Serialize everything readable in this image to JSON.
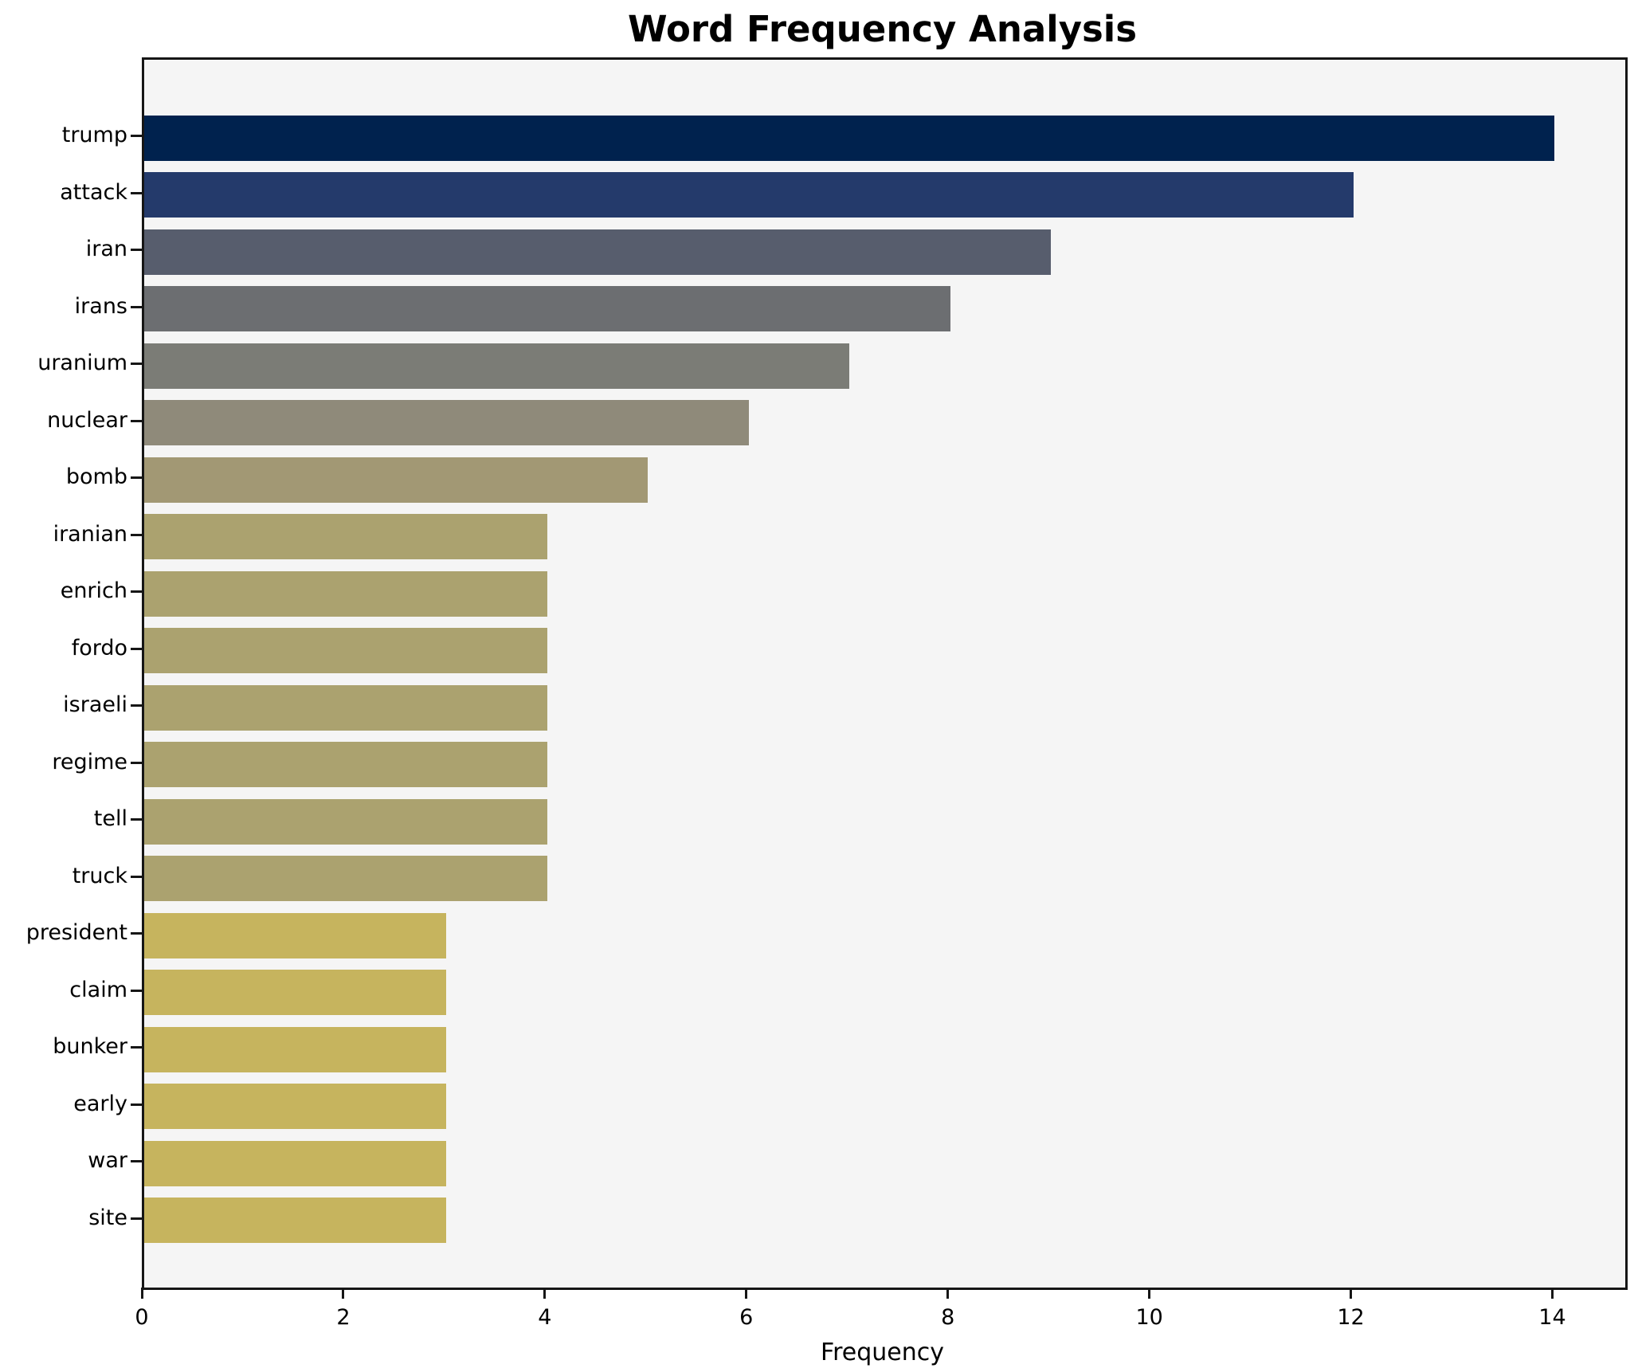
{
  "chart_data": {
    "type": "bar",
    "orientation": "horizontal",
    "title": "Word Frequency Analysis",
    "xlabel": "Frequency",
    "ylabel": "",
    "categories": [
      "trump",
      "attack",
      "iran",
      "irans",
      "uranium",
      "nuclear",
      "bomb",
      "iranian",
      "enrich",
      "fordo",
      "israeli",
      "regime",
      "tell",
      "truck",
      "president",
      "claim",
      "bunker",
      "early",
      "war",
      "site"
    ],
    "values": [
      14,
      12,
      9,
      8,
      7,
      6,
      5,
      4,
      4,
      4,
      4,
      4,
      4,
      4,
      3,
      3,
      3,
      3,
      3,
      3
    ],
    "bar_colors": [
      "#00224e",
      "#243a6b",
      "#575d6d",
      "#6c6e71",
      "#7b7c76",
      "#8f8a7a",
      "#a29874",
      "#aba26f",
      "#aba26f",
      "#aba26f",
      "#aba26f",
      "#aba26f",
      "#aba26f",
      "#aba26f",
      "#c6b45e",
      "#c6b45e",
      "#c6b45e",
      "#c6b45e",
      "#c6b45e",
      "#c6b45e"
    ],
    "xlim": [
      0,
      14.7
    ],
    "xticks": [
      0,
      2,
      4,
      6,
      8,
      10,
      12,
      14
    ],
    "grid": false,
    "legend": null,
    "plot_background": "#f5f5f5",
    "figure_background": "#ffffff",
    "axis_color": "#161616",
    "text_color": "#000000"
  }
}
